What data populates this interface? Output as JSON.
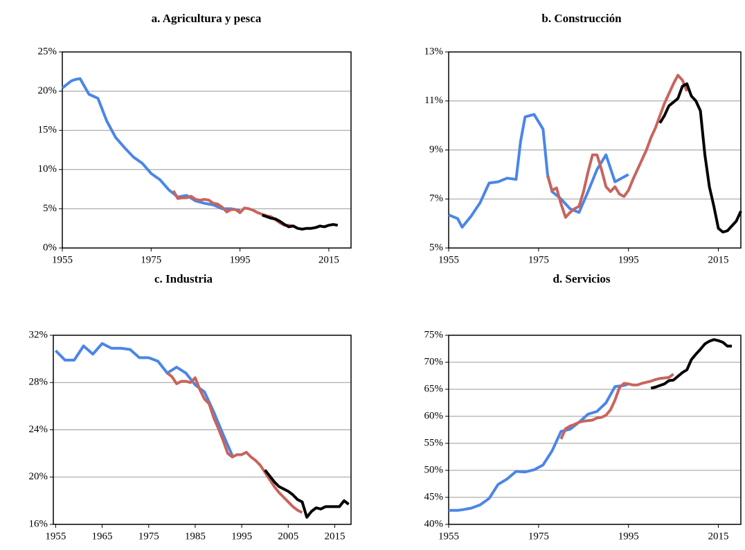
{
  "chart_data": [
    {
      "type": "line",
      "title": "a. Agricultura y pesca",
      "xlim": [
        1955,
        2020
      ],
      "xticks": [
        1955,
        1975,
        1995,
        2015
      ],
      "ylim": [
        0,
        25
      ],
      "yticks": [
        {
          "value": 0,
          "label": "0%"
        },
        {
          "value": 5,
          "label": "5%"
        },
        {
          "value": 10,
          "label": "10%"
        },
        {
          "value": 15,
          "label": "15%"
        },
        {
          "value": 20,
          "label": "20%"
        },
        {
          "value": 25,
          "label": "25%"
        }
      ],
      "grid": true,
      "series": [
        {
          "color": "#4a86e8",
          "x": [
            1955,
            1957,
            1958,
            1959,
            1961,
            1963,
            1965,
            1967,
            1969,
            1971,
            1973,
            1975,
            1977,
            1979,
            1981,
            1983,
            1985,
            1987,
            1989,
            1991,
            1993,
            1995
          ],
          "values": [
            20.4,
            21.3,
            21.5,
            21.6,
            19.6,
            19.1,
            16.2,
            14.1,
            12.8,
            11.6,
            10.8,
            9.5,
            8.7,
            7.4,
            6.5,
            6.7,
            6.0,
            5.7,
            5.5,
            5.0,
            5.0,
            4.8
          ]
        },
        {
          "color": "#c8645c",
          "x": [
            1980,
            1981,
            1982,
            1983,
            1984,
            1985,
            1986,
            1987,
            1988,
            1989,
            1990,
            1991,
            1992,
            1993,
            1994,
            1995,
            1996,
            1997,
            1998,
            1999,
            2000,
            2001,
            2002,
            2003,
            2004,
            2005,
            2006,
            2007
          ],
          "values": [
            7.3,
            6.3,
            6.4,
            6.4,
            6.6,
            6.2,
            6.1,
            6.2,
            6.1,
            5.7,
            5.6,
            5.2,
            4.6,
            4.9,
            4.9,
            4.5,
            5.1,
            5.0,
            4.8,
            4.5,
            4.3,
            4.1,
            4.0,
            3.6,
            3.2,
            2.9,
            2.9,
            2.8
          ]
        },
        {
          "color": "#000000",
          "x": [
            2000,
            2001,
            2002,
            2003,
            2004,
            2005,
            2006,
            2007,
            2008,
            2009,
            2010,
            2011,
            2012,
            2013,
            2014,
            2015,
            2016,
            2017
          ],
          "values": [
            4.2,
            4.0,
            3.8,
            3.7,
            3.4,
            3.0,
            2.7,
            2.8,
            2.5,
            2.4,
            2.5,
            2.5,
            2.6,
            2.8,
            2.7,
            2.9,
            3.0,
            2.9
          ]
        }
      ]
    },
    {
      "type": "line",
      "title": "b. Construcción",
      "xlim": [
        1955,
        2020
      ],
      "xticks": [
        1955,
        1975,
        1995,
        2015
      ],
      "ylim": [
        5,
        13
      ],
      "yticks": [
        {
          "value": 5,
          "label": "5%"
        },
        {
          "value": 7,
          "label": "7%"
        },
        {
          "value": 9,
          "label": "9%"
        },
        {
          "value": 11,
          "label": "11%"
        },
        {
          "value": 13,
          "label": "13%"
        }
      ],
      "grid": true,
      "series": [
        {
          "color": "#4a86e8",
          "x": [
            1955,
            1957,
            1958,
            1960,
            1962,
            1964,
            1966,
            1968,
            1970,
            1971,
            1972,
            1974,
            1976,
            1977,
            1978,
            1980,
            1982,
            1984,
            1986,
            1988,
            1990,
            1992,
            1995
          ],
          "values": [
            6.35,
            6.2,
            5.85,
            6.3,
            6.85,
            7.65,
            7.7,
            7.85,
            7.8,
            9.35,
            10.35,
            10.45,
            9.85,
            8.0,
            7.3,
            7.0,
            6.6,
            6.45,
            7.3,
            8.2,
            8.8,
            7.7,
            8.0
          ]
        },
        {
          "color": "#c8645c",
          "x": [
            1977,
            1978,
            1979,
            1980,
            1981,
            1982,
            1983,
            1984,
            1985,
            1986,
            1987,
            1988,
            1989,
            1990,
            1991,
            1992,
            1993,
            1994,
            1995,
            1996,
            1997,
            1998,
            1999,
            2000,
            2001,
            2002,
            2003,
            2004,
            2005,
            2006,
            2007,
            2008
          ],
          "values": [
            7.95,
            7.35,
            7.45,
            6.8,
            6.25,
            6.45,
            6.6,
            6.7,
            7.3,
            8.1,
            8.8,
            8.8,
            8.2,
            7.5,
            7.3,
            7.5,
            7.2,
            7.1,
            7.35,
            7.8,
            8.2,
            8.6,
            9.0,
            9.5,
            9.9,
            10.4,
            10.9,
            11.3,
            11.7,
            12.05,
            11.85,
            11.4
          ]
        },
        {
          "color": "#000000",
          "x": [
            2002,
            2003,
            2004,
            2005,
            2006,
            2007,
            2008,
            2009,
            2010,
            2011,
            2012,
            2013,
            2014,
            2015,
            2016,
            2017,
            2018,
            2019,
            2020
          ],
          "values": [
            10.1,
            10.4,
            10.8,
            10.95,
            11.1,
            11.6,
            11.7,
            11.2,
            11.0,
            10.6,
            8.8,
            7.5,
            6.7,
            5.8,
            5.65,
            5.7,
            5.9,
            6.1,
            6.5
          ]
        }
      ]
    },
    {
      "type": "line",
      "title": "c. Industria",
      "xlim": [
        1954.5,
        2018.5
      ],
      "xticks": [
        1955,
        1965,
        1975,
        1985,
        1995,
        2005,
        2015
      ],
      "ylim": [
        16,
        32
      ],
      "yticks": [
        {
          "value": 16,
          "label": "16%"
        },
        {
          "value": 20,
          "label": "20%"
        },
        {
          "value": 24,
          "label": "24%"
        },
        {
          "value": 28,
          "label": "28%"
        },
        {
          "value": 32,
          "label": "32%"
        }
      ],
      "grid": true,
      "series": [
        {
          "color": "#4a86e8",
          "x": [
            1955,
            1957,
            1959,
            1961,
            1963,
            1965,
            1967,
            1969,
            1971,
            1973,
            1975,
            1977,
            1979,
            1981,
            1983,
            1985,
            1987,
            1989,
            1991,
            1993
          ],
          "values": [
            30.7,
            29.9,
            29.9,
            31.1,
            30.4,
            31.3,
            30.9,
            30.9,
            30.8,
            30.1,
            30.1,
            29.8,
            28.8,
            29.3,
            28.8,
            27.8,
            27.2,
            25.5,
            23.6,
            21.8
          ]
        },
        {
          "color": "#c8645c",
          "x": [
            1979,
            1980,
            1981,
            1982,
            1983,
            1984,
            1985,
            1986,
            1987,
            1988,
            1989,
            1990,
            1991,
            1992,
            1993,
            1994,
            1995,
            1996,
            1997,
            1998,
            1999,
            2000,
            2001,
            2002,
            2003,
            2004,
            2005,
            2006,
            2007,
            2008
          ],
          "values": [
            28.8,
            28.5,
            27.9,
            28.1,
            28.1,
            28.0,
            28.4,
            27.4,
            26.6,
            26.2,
            25.0,
            24.1,
            23.1,
            22.0,
            21.7,
            21.9,
            21.9,
            22.1,
            21.7,
            21.4,
            21.0,
            20.4,
            19.8,
            19.2,
            18.7,
            18.3,
            17.9,
            17.5,
            17.2,
            17.0
          ]
        },
        {
          "color": "#000000",
          "x": [
            2000,
            2001,
            2002,
            2003,
            2004,
            2005,
            2006,
            2007,
            2008,
            2009,
            2010,
            2011,
            2012,
            2013,
            2014,
            2015,
            2016,
            2017,
            2018
          ],
          "values": [
            20.6,
            20.1,
            19.6,
            19.2,
            19.0,
            18.8,
            18.5,
            18.1,
            17.9,
            16.6,
            17.1,
            17.4,
            17.3,
            17.5,
            17.5,
            17.5,
            17.5,
            18.0,
            17.7
          ]
        }
      ]
    },
    {
      "type": "line",
      "title": "d. Servicios",
      "xlim": [
        1955,
        2020
      ],
      "xticks": [
        1955,
        1975,
        1995,
        2015
      ],
      "ylim": [
        40,
        75
      ],
      "yticks": [
        {
          "value": 40,
          "label": "40%"
        },
        {
          "value": 45,
          "label": "45%"
        },
        {
          "value": 50,
          "label": "50%"
        },
        {
          "value": 55,
          "label": "55%"
        },
        {
          "value": 60,
          "label": "60%"
        },
        {
          "value": 65,
          "label": "65%"
        },
        {
          "value": 70,
          "label": "70%"
        },
        {
          "value": 75,
          "label": "75%"
        }
      ],
      "grid": true,
      "series": [
        {
          "color": "#4a86e8",
          "x": [
            1955,
            1957,
            1958,
            1960,
            1962,
            1964,
            1966,
            1968,
            1970,
            1972,
            1974,
            1976,
            1978,
            1980,
            1982,
            1984,
            1986,
            1988,
            1990,
            1992,
            1994,
            1995
          ],
          "values": [
            42.6,
            42.6,
            42.7,
            43.0,
            43.6,
            44.8,
            47.4,
            48.4,
            49.8,
            49.7,
            50.1,
            51.0,
            53.6,
            57.2,
            57.6,
            58.9,
            60.4,
            60.9,
            62.5,
            65.5,
            65.7,
            66.0
          ]
        },
        {
          "color": "#c8645c",
          "x": [
            1980,
            1981,
            1982,
            1983,
            1984,
            1985,
            1986,
            1987,
            1988,
            1989,
            1990,
            1991,
            1992,
            1993,
            1994,
            1995,
            1996,
            1997,
            1998,
            1999,
            2000,
            2001,
            2002,
            2003,
            2004,
            2005
          ],
          "values": [
            55.8,
            57.7,
            58.2,
            58.5,
            58.9,
            59.1,
            59.2,
            59.3,
            59.7,
            59.8,
            60.2,
            61.2,
            63.0,
            65.3,
            66.1,
            66.0,
            65.8,
            65.8,
            66.1,
            66.3,
            66.5,
            66.8,
            67.0,
            67.1,
            67.2,
            67.8
          ]
        },
        {
          "color": "#000000",
          "x": [
            2000,
            2001,
            2002,
            2003,
            2004,
            2005,
            2006,
            2007,
            2008,
            2009,
            2010,
            2011,
            2012,
            2013,
            2014,
            2015,
            2016,
            2017,
            2018
          ],
          "values": [
            65.2,
            65.4,
            65.7,
            66.0,
            66.6,
            66.7,
            67.4,
            68.1,
            68.6,
            70.5,
            71.5,
            72.4,
            73.4,
            73.9,
            74.2,
            74.0,
            73.7,
            73.0,
            73.0
          ]
        }
      ]
    }
  ]
}
